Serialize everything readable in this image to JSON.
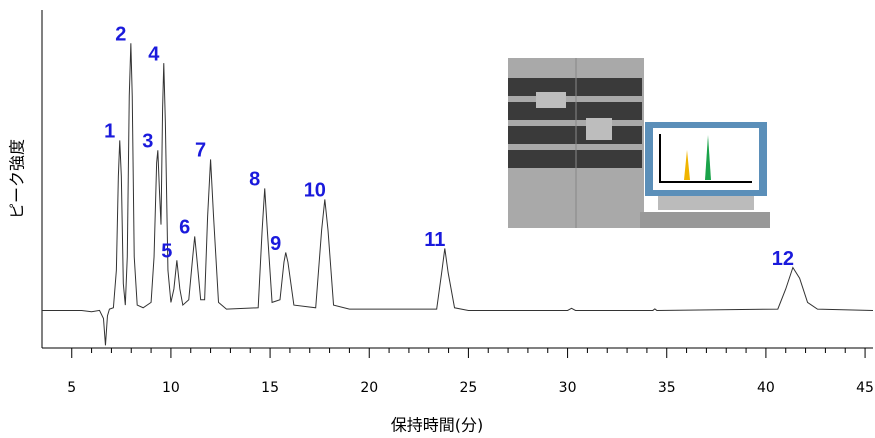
{
  "chart_data": {
    "type": "line",
    "xlabel": "保持時間(分)",
    "ylabel": "ピーク強度",
    "xlim": [
      3.5,
      45.4
    ],
    "ylim": [
      -14,
      112
    ],
    "xticks": [
      5,
      10,
      15,
      20,
      25,
      30,
      35,
      40,
      45
    ],
    "peak_labels": [
      "1",
      "2",
      "3",
      "4",
      "5",
      "6",
      "7",
      "8",
      "9",
      "10",
      "11",
      "12"
    ],
    "series": [
      {
        "color": "#333333",
        "x": [
          3.5,
          5.5,
          6.0,
          6.4,
          6.6,
          6.7,
          6.8,
          6.9,
          7.1,
          7.25,
          7.35,
          7.42,
          7.5,
          7.6,
          7.7,
          7.8,
          7.9,
          7.98,
          8.05,
          8.15,
          8.3,
          8.6,
          9.0,
          9.15,
          9.28,
          9.34,
          9.42,
          9.5,
          9.58,
          9.64,
          9.72,
          9.85,
          10.0,
          10.15,
          10.3,
          10.45,
          10.6,
          10.9,
          11.1,
          11.2,
          11.3,
          11.5,
          11.7,
          11.85,
          12.0,
          12.15,
          12.4,
          12.8,
          14.4,
          14.6,
          14.73,
          14.86,
          15.1,
          15.5,
          15.7,
          15.79,
          15.9,
          16.2,
          17.3,
          17.6,
          17.76,
          17.92,
          18.2,
          19,
          23.4,
          23.65,
          23.81,
          23.98,
          24.3,
          25,
          30,
          30.2,
          30.4,
          34.3,
          34.4,
          34.5,
          40.6,
          41.0,
          41.36,
          41.7,
          42.1,
          42.6,
          45.4
        ],
        "values": [
          0,
          0,
          -0.5,
          0,
          -3,
          -13,
          -2,
          0.5,
          1,
          15,
          50,
          63.4,
          50,
          10,
          2,
          20,
          80,
          99.6,
          80,
          20,
          2,
          1,
          3,
          20,
          55,
          59.7,
          45,
          32,
          75,
          92.2,
          70,
          15,
          3,
          8,
          18.7,
          8,
          2,
          4,
          20,
          27.6,
          20,
          4,
          4,
          35,
          56.3,
          35,
          3,
          0.5,
          1,
          30,
          45.5,
          30,
          3,
          4,
          18,
          21.6,
          18,
          2,
          1,
          30,
          41.4,
          30,
          2,
          0.5,
          0.5,
          14,
          23.1,
          14,
          1,
          0,
          0,
          0.8,
          0,
          0,
          0.6,
          0,
          0.5,
          8,
          16,
          12,
          3,
          0.5,
          0
        ]
      }
    ]
  }
}
